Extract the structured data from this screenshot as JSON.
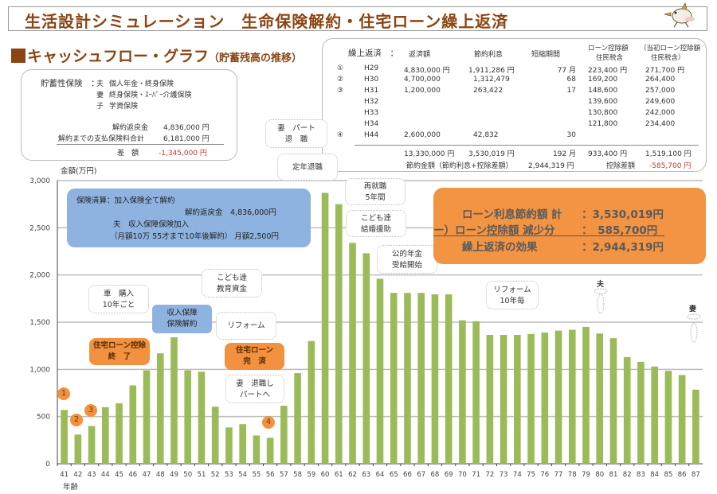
{
  "header": {
    "title": "生活設計シミュレーション　生命保険解約・住宅ローン繰上返済",
    "mascot_icon": "bird-mascot-icon"
  },
  "section": {
    "title": "キャッシュフロー・グラフ",
    "subtitle": "（貯蓄残高の推移）"
  },
  "savings_panel": {
    "label": "貯蓄性保険　：",
    "items": [
      {
        "who": "夫",
        "desc": "個人年金・終身保険"
      },
      {
        "who": "妻",
        "desc": "終身保険・ｽｰﾊﾟｰ介護保険"
      },
      {
        "who": "子",
        "desc": "学資保険"
      }
    ],
    "refund_label": "解約返戻金",
    "refund_value": "4,836,000 円",
    "paid_label": "解約までの支払保険料合計",
    "paid_value": "6,181,000 円",
    "diff_label": "差　額",
    "diff_value": "-1,345,000 円"
  },
  "repayment_panel": {
    "headers": {
      "label": "繰上返済　：",
      "amount": "返済額",
      "interest": "節約利息",
      "period": "短縮期間",
      "deduction": "ローン控除額",
      "deduction_sub": "住民税含",
      "initial": "（当初ローン控除額",
      "initial_sub": "住民税含）"
    },
    "rows": [
      {
        "no": "①",
        "year": "H29",
        "amount": "4,830,000 円",
        "interest": "1,911,286 円",
        "period": "77 月",
        "deduction": "223,400 円",
        "initial": "271,700 円"
      },
      {
        "no": "②",
        "year": "H30",
        "amount": "4,700,000",
        "interest": "1,312,479",
        "period": "68",
        "deduction": "169,200",
        "initial": "264,400"
      },
      {
        "no": "③",
        "year": "H31",
        "amount": "1,200,000",
        "interest": "263,422",
        "period": "17",
        "deduction": "148,600",
        "initial": "257,000"
      },
      {
        "no": "",
        "year": "H32",
        "amount": "",
        "interest": "",
        "period": "",
        "deduction": "139,600",
        "initial": "249,600"
      },
      {
        "no": "",
        "year": "H33",
        "amount": "",
        "interest": "",
        "period": "",
        "deduction": "130,800",
        "initial": "242,000"
      },
      {
        "no": "",
        "year": "H34",
        "amount": "",
        "interest": "",
        "period": "",
        "deduction": "121,800",
        "initial": "234,400"
      },
      {
        "no": "④",
        "year": "H44",
        "amount": "2,600,000",
        "interest": "42,832",
        "period": "30",
        "deduction": "",
        "initial": ""
      }
    ],
    "totals": {
      "amount": "13,330,000 円",
      "interest": "3,530,019 円",
      "period": "192 月",
      "deduction": "933,400 円",
      "initial": "1,519,100 円"
    },
    "savings_label": "節約金額（節約利息+控除差額）",
    "savings_value": "2,944,319 円",
    "deduction_diff_label": "控除差額",
    "deduction_diff_value": "-585,700 円"
  },
  "summary_box": {
    "line1_label": "ローン利息節約額 計",
    "line1_value": "：3,530,019円",
    "line2_label": "ー）ローン控除額 減少分",
    "line2_value": "：　585,700円",
    "line3_label": "繰上返済の効果",
    "line3_value": "：2,944,319円"
  },
  "callouts": {
    "blue_main": [
      "保険清算：加入保険全て解約",
      "解約返戻金　4,836,000円",
      "夫　収入保障保険加入",
      "（月額10万 55才まで10年後解約）  月額2,500円"
    ],
    "blue_small": [
      "収入保障",
      "保険解約"
    ],
    "car": [
      "車　購入",
      "10年ごと"
    ],
    "education": [
      "こども達",
      "教育資金"
    ],
    "reform1": [
      "リフォーム"
    ],
    "loan_deduction_end": [
      "住宅ローン控除",
      "終　了"
    ],
    "loan_paid": [
      "住宅ローン",
      "完　済"
    ],
    "wife_part": [
      "妻　退職し",
      "パートへ"
    ],
    "wife_part_retire": [
      "妻　パート",
      "退　職"
    ],
    "retire": [
      "定年退職"
    ],
    "reemploy": [
      "再就職",
      "5年間"
    ],
    "wedding": [
      "こども達",
      "結婚援助"
    ],
    "pension": [
      "公的年金",
      "受給開始"
    ],
    "reform2": [
      "リフォーム",
      "10年毎"
    ],
    "husband": "夫",
    "wife": "妻",
    "markers": [
      "1",
      "2",
      "3",
      "4"
    ]
  },
  "chart_data": {
    "type": "bar",
    "title": "キャッシュフロー・グラフ（貯蓄残高の推移）",
    "ylabel": "金額(万円)",
    "xlabel": "年齢",
    "ylim": [
      0,
      3000
    ],
    "yticks": [
      0,
      500,
      1000,
      1500,
      2000,
      2500,
      3000
    ],
    "ytick_labels": [
      "0",
      "500",
      "1,000",
      "1,500",
      "2,000",
      "2,500",
      "3,000"
    ],
    "grid": true,
    "bar_color": "#9bbb59",
    "categories": [
      "41",
      "42",
      "43",
      "44",
      "45",
      "46",
      "47",
      "48",
      "49",
      "50",
      "51",
      "52",
      "53",
      "54",
      "55",
      "56",
      "57",
      "58",
      "59",
      "60",
      "61",
      "62",
      "63",
      "64",
      "65",
      "66",
      "67",
      "68",
      "69",
      "70",
      "71",
      "72",
      "73",
      "74",
      "75",
      "76",
      "77",
      "78",
      "79",
      "80",
      "81",
      "82",
      "83",
      "84",
      "85",
      "86",
      "87"
    ],
    "values": [
      570,
      310,
      400,
      600,
      640,
      830,
      990,
      1170,
      1340,
      990,
      975,
      605,
      385,
      420,
      300,
      275,
      615,
      960,
      1300,
      2870,
      2750,
      2340,
      2230,
      1960,
      1810,
      1810,
      1810,
      1795,
      1795,
      1520,
      1510,
      1365,
      1365,
      1365,
      1375,
      1390,
      1410,
      1420,
      1450,
      1380,
      1330,
      1130,
      1080,
      1030,
      985,
      940,
      785
    ]
  }
}
